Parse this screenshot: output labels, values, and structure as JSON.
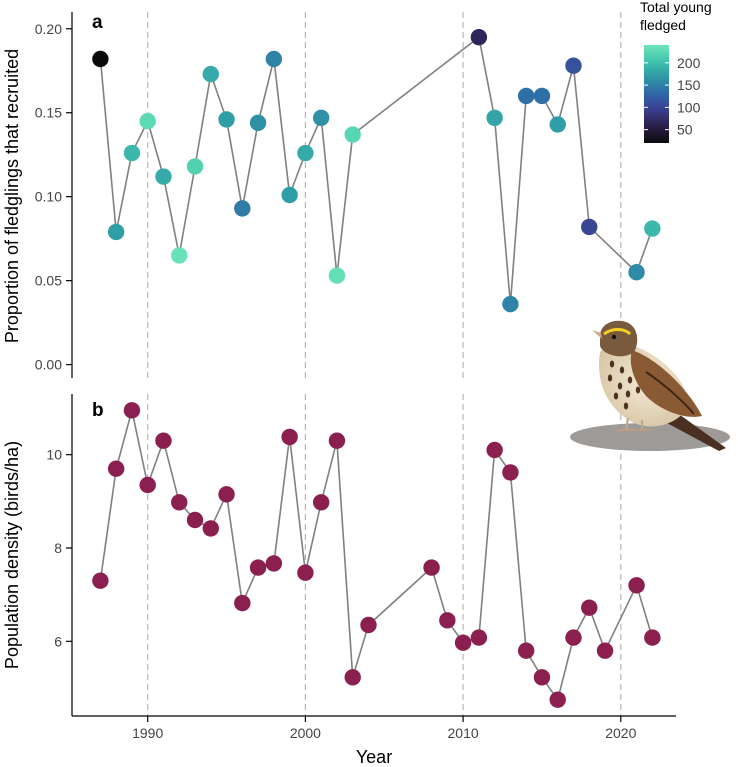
{
  "chart_data": [
    {
      "panel": "a",
      "type": "line",
      "ylabel": "Proportion of fledglings that recruited",
      "xlabel": "",
      "xlim": [
        1985.2,
        2023.5
      ],
      "ylim": [
        -0.008,
        0.21
      ],
      "yticks": [
        0.0,
        0.05,
        0.1,
        0.15,
        0.2
      ],
      "ytick_labels": [
        "0.00",
        "0.05",
        "0.10",
        "0.15",
        "0.20"
      ],
      "vlines": [
        1990,
        2000,
        2010,
        2020
      ],
      "line_color": "#808080",
      "x": [
        1987,
        1988,
        1989,
        1990,
        1991,
        1992,
        1993,
        1994,
        1995,
        1996,
        1997,
        1998,
        1999,
        2000,
        2001,
        2002,
        2003,
        2011,
        2012,
        2013,
        2014,
        2015,
        2016,
        2017,
        2018,
        2021,
        2022
      ],
      "values": [
        0.182,
        0.079,
        0.126,
        0.145,
        0.112,
        0.065,
        0.118,
        0.173,
        0.146,
        0.093,
        0.144,
        0.182,
        0.101,
        0.126,
        0.147,
        0.053,
        0.137,
        0.195,
        0.147,
        0.036,
        0.16,
        0.16,
        0.143,
        0.178,
        0.082,
        0.055,
        0.081
      ],
      "fledged": [
        20,
        170,
        190,
        225,
        180,
        235,
        215,
        180,
        170,
        145,
        160,
        150,
        170,
        180,
        160,
        230,
        220,
        65,
        175,
        150,
        135,
        135,
        170,
        110,
        100,
        155,
        190
      ],
      "legend": {
        "title_lines": [
          "Total young",
          "fledged"
        ],
        "ticks": [
          50,
          100,
          150,
          200
        ],
        "tick_labels": [
          "50",
          "100",
          "150",
          "200"
        ],
        "range": [
          20,
          240
        ],
        "colors": [
          "#0a0a0a",
          "#2b1f4a",
          "#3a3f8f",
          "#2f68a8",
          "#2e9aa6",
          "#44c7ae",
          "#6fe6b8"
        ]
      }
    },
    {
      "panel": "b",
      "type": "line",
      "ylabel": "Population density (birds/ha)",
      "xlabel": "Year",
      "xlim": [
        1985.2,
        2023.5
      ],
      "ylim": [
        4.4,
        11.3
      ],
      "yticks": [
        6,
        8,
        10
      ],
      "ytick_labels": [
        "6",
        "8",
        "10"
      ],
      "xticks": [
        1990,
        2000,
        2010,
        2020
      ],
      "xtick_labels": [
        "1990",
        "2000",
        "2010",
        "2020"
      ],
      "vlines": [
        1990,
        2000,
        2010,
        2020
      ],
      "line_color": "#808080",
      "marker_color": "#8b1f4f",
      "x": [
        1987,
        1988,
        1989,
        1990,
        1991,
        1992,
        1993,
        1994,
        1995,
        1996,
        1997,
        1998,
        1999,
        2000,
        2001,
        2002,
        2003,
        2004,
        2008,
        2009,
        2010,
        2011,
        2012,
        2013,
        2014,
        2015,
        2016,
        2017,
        2018,
        2019,
        2021,
        2022
      ],
      "values": [
        7.3,
        9.7,
        10.95,
        9.35,
        10.3,
        8.98,
        8.6,
        8.42,
        9.15,
        6.82,
        7.58,
        7.67,
        10.38,
        7.47,
        8.98,
        10.3,
        5.23,
        6.35,
        7.58,
        6.45,
        5.97,
        6.08,
        10.1,
        9.62,
        5.8,
        5.23,
        4.75,
        6.08,
        6.72,
        5.8,
        7.2,
        6.08
      ]
    }
  ],
  "illustration": {
    "subject": "sparrow-on-rock"
  }
}
